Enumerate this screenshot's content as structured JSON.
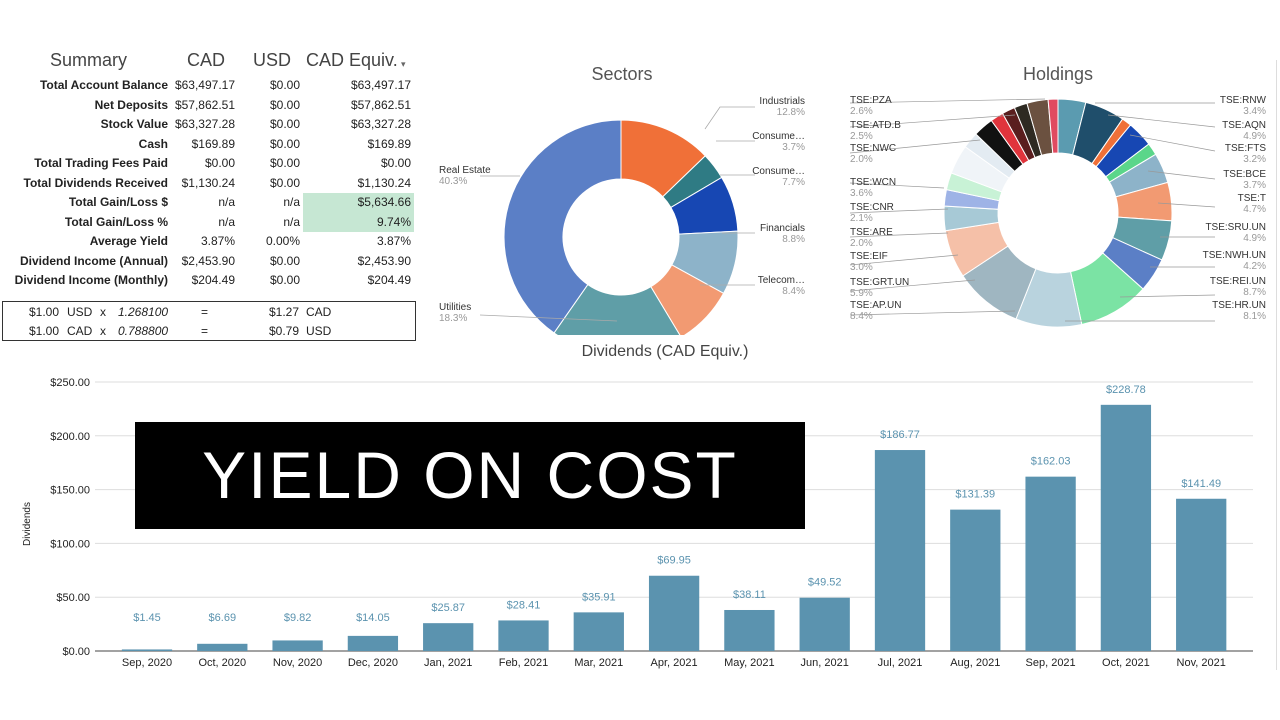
{
  "summary": {
    "headers": [
      "Summary",
      "CAD",
      "USD",
      "CAD Equiv."
    ],
    "rows": [
      {
        "label": "Total Account Balance",
        "cad": "$63,497.17",
        "usd": "$0.00",
        "equiv": "$63,497.17"
      },
      {
        "label": "Net Deposits",
        "cad": "$57,862.51",
        "usd": "$0.00",
        "equiv": "$57,862.51"
      },
      {
        "label": "Stock Value",
        "cad": "$63,327.28",
        "usd": "$0.00",
        "equiv": "$63,327.28"
      },
      {
        "label": "Cash",
        "cad": "$169.89",
        "usd": "$0.00",
        "equiv": "$169.89"
      },
      {
        "label": "Total Trading Fees Paid",
        "cad": "$0.00",
        "usd": "$0.00",
        "equiv": "$0.00"
      },
      {
        "label": "Total Dividends Received",
        "cad": "$1,130.24",
        "usd": "$0.00",
        "equiv": "$1,130.24"
      },
      {
        "label": "Total Gain/Loss $",
        "cad": "n/a",
        "usd": "n/a",
        "equiv": "$5,634.66"
      },
      {
        "label": "Total Gain/Loss %",
        "cad": "n/a",
        "usd": "n/a",
        "equiv": "9.74%"
      },
      {
        "label": "Average Yield",
        "cad": "3.87%",
        "usd": "0.00%",
        "equiv": "3.87%"
      },
      {
        "label": "Dividend Income (Annual)",
        "cad": "$2,453.90",
        "usd": "$0.00",
        "equiv": "$2,453.90"
      },
      {
        "label": "Dividend Income (Monthly)",
        "cad": "$204.49",
        "usd": "$0.00",
        "equiv": "$204.49"
      }
    ],
    "highlight_color": "#c6e7d3",
    "fx": [
      {
        "amount": "$1.00",
        "from": "USD",
        "x": "x",
        "rate": "1.268100",
        "eq": "=",
        "result": "$1.27",
        "to": "CAD"
      },
      {
        "amount": "$1.00",
        "from": "CAD",
        "x": "x",
        "rate": "0.788800",
        "eq": "=",
        "result": "$0.79",
        "to": "USD"
      }
    ]
  },
  "sectors": {
    "title": "Sectors",
    "slices": [
      {
        "name": "Industrials",
        "pct": "12.8%",
        "value": 12.8,
        "color": "#f07038"
      },
      {
        "name": "Consume…",
        "pct": "3.7%",
        "value": 3.7,
        "color": "#2f7b84"
      },
      {
        "name": "Consume…",
        "pct": "7.7%",
        "value": 7.7,
        "color": "#1747b3"
      },
      {
        "name": "Financials",
        "pct": "8.8%",
        "value": 8.8,
        "color": "#8db3c9"
      },
      {
        "name": "Telecom…",
        "pct": "8.4%",
        "value": 8.4,
        "color": "#f29a72"
      },
      {
        "name": "Utilities",
        "pct": "18.3%",
        "value": 18.3,
        "color": "#5f9ea7"
      },
      {
        "name": "Real Estate",
        "pct": "40.3%",
        "value": 40.3,
        "color": "#5b7fc6"
      }
    ]
  },
  "holdings": {
    "title": "Holdings",
    "labels_right": [
      {
        "name": "TSE:RNW",
        "pct": "3.4%"
      },
      {
        "name": "TSE:AQN",
        "pct": "4.9%"
      },
      {
        "name": "TSE:FTS",
        "pct": "3.2%"
      },
      {
        "name": "TSE:BCE",
        "pct": "3.7%"
      },
      {
        "name": "TSE:T",
        "pct": "4.7%"
      },
      {
        "name": "TSE:SRU.UN",
        "pct": "4.9%"
      },
      {
        "name": "TSE:NWH.UN",
        "pct": "4.2%"
      },
      {
        "name": "TSE:REI.UN",
        "pct": "8.7%"
      },
      {
        "name": "TSE:HR.UN",
        "pct": "8.1%"
      }
    ],
    "labels_left": [
      {
        "name": "TSE:PZA",
        "pct": "2.6%"
      },
      {
        "name": "TSE:ATD.B",
        "pct": "2.5%"
      },
      {
        "name": "TSE:NWC",
        "pct": "2.0%"
      },
      {
        "name": "TSE:WCN",
        "pct": "3.6%"
      },
      {
        "name": "TSE:CNR",
        "pct": "2.1%"
      },
      {
        "name": "TSE:ARE",
        "pct": "2.0%"
      },
      {
        "name": "TSE:EIF",
        "pct": "3.0%"
      },
      {
        "name": "TSE:GRT.UN",
        "pct": "5.9%"
      },
      {
        "name": "TSE:AP.UN",
        "pct": "8.4%"
      }
    ],
    "slices": [
      {
        "value": 3.4,
        "color": "#5b9bb0"
      },
      {
        "value": 4.9,
        "color": "#1f4e6b"
      },
      {
        "value": 1.2,
        "color": "#f07038"
      },
      {
        "value": 3.2,
        "color": "#1747b3"
      },
      {
        "value": 1.5,
        "color": "#5bd68a"
      },
      {
        "value": 3.7,
        "color": "#8db3c9"
      },
      {
        "value": 4.7,
        "color": "#f29a72"
      },
      {
        "value": 4.9,
        "color": "#5f9ea7"
      },
      {
        "value": 4.2,
        "color": "#5b7fc6"
      },
      {
        "value": 8.7,
        "color": "#7be3a4"
      },
      {
        "value": 8.1,
        "color": "#b9d3de"
      },
      {
        "value": 8.4,
        "color": "#9fb6c1"
      },
      {
        "value": 5.9,
        "color": "#f5c0a8"
      },
      {
        "value": 3.0,
        "color": "#a7c9d6"
      },
      {
        "value": 2.0,
        "color": "#9eb3e6"
      },
      {
        "value": 2.1,
        "color": "#c8f2d6"
      },
      {
        "value": 3.6,
        "color": "#f0f4f8"
      },
      {
        "value": 2.0,
        "color": "#e3ebf2"
      },
      {
        "value": 2.5,
        "color": "#111111"
      },
      {
        "value": 1.6,
        "color": "#e0343c"
      },
      {
        "value": 1.6,
        "color": "#5a1e1e"
      },
      {
        "value": 1.6,
        "color": "#2e2a22"
      },
      {
        "value": 2.6,
        "color": "#6b5140"
      },
      {
        "value": 1.2,
        "color": "#e04a60"
      }
    ]
  },
  "overlay": {
    "text": "YIELD ON COST"
  },
  "chart_data": {
    "type": "bar",
    "title": "Dividends (CAD Equiv.)",
    "ylabel": "Dividends",
    "xlabel": "",
    "ylim": [
      0,
      250
    ],
    "yticks": [
      "$0.00",
      "$50.00",
      "$100.00",
      "$150.00",
      "$200.00",
      "$250.00"
    ],
    "categories": [
      "Sep, 2020",
      "Oct, 2020",
      "Nov, 2020",
      "Dec, 2020",
      "Jan, 2021",
      "Feb, 2021",
      "Mar, 2021",
      "Apr, 2021",
      "May, 2021",
      "Jun, 2021",
      "Jul, 2021",
      "Aug, 2021",
      "Sep, 2021",
      "Oct, 2021",
      "Nov, 2021"
    ],
    "values": [
      1.45,
      6.69,
      9.82,
      14.05,
      25.87,
      28.41,
      35.91,
      69.95,
      38.11,
      49.52,
      186.77,
      131.39,
      162.03,
      228.78,
      141.49
    ],
    "value_labels": [
      "$1.45",
      "$6.69",
      "$9.82",
      "$14.05",
      "$25.87",
      "$28.41",
      "$35.91",
      "$69.95",
      "$38.11",
      "$49.52",
      "$186.77",
      "$131.39",
      "$162.03",
      "$228.78",
      "$141.49"
    ],
    "bar_color": "#5b93af",
    "label_color": "#5b93af",
    "grid": true
  }
}
